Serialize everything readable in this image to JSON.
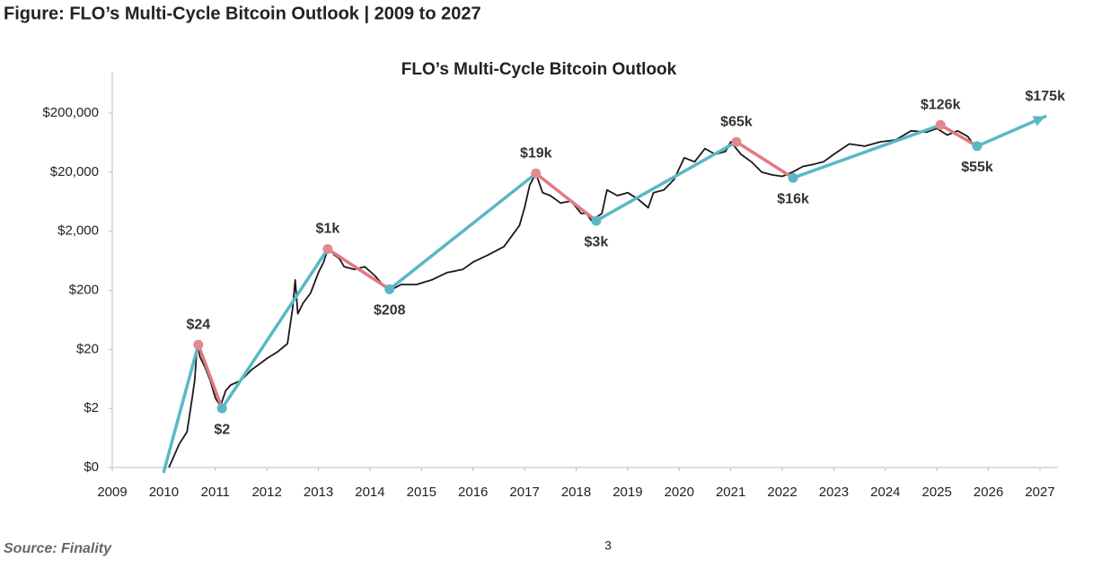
{
  "header": {
    "title": "Figure: FLO’s Multi-Cycle Bitcoin Outlook | 2009 to 2027"
  },
  "chart_data": {
    "type": "line",
    "title": "FLO’s Multi-Cycle Bitcoin Outlook",
    "log_scale": true,
    "xlim": [
      2009,
      2027
    ],
    "xticks": [
      2009,
      2010,
      2011,
      2012,
      2013,
      2014,
      2015,
      2016,
      2017,
      2018,
      2019,
      2020,
      2021,
      2022,
      2023,
      2024,
      2025,
      2026,
      2027
    ],
    "ylim": [
      0.2,
      1000000
    ],
    "yticks": [
      {
        "value": 0.2,
        "label": "$0"
      },
      {
        "value": 2,
        "label": "$2"
      },
      {
        "value": 20,
        "label": "$20"
      },
      {
        "value": 200,
        "label": "$200"
      },
      {
        "value": 2000,
        "label": "$2,000"
      },
      {
        "value": 20000,
        "label": "$20,000"
      },
      {
        "value": 200000,
        "label": "$200,000"
      }
    ],
    "series": [
      {
        "color": "#1a1a1a",
        "x": [
          2010.1,
          2010.3,
          2010.45,
          2010.55,
          2010.6,
          2010.65,
          2010.7,
          2010.8,
          2010.9,
          2011.0,
          2011.1,
          2011.2,
          2011.3,
          2011.5,
          2011.7,
          2011.9,
          2012.0,
          2012.2,
          2012.4,
          2012.5,
          2012.55,
          2012.6,
          2012.7,
          2012.85,
          2013.0,
          2013.1,
          2013.2,
          2013.3,
          2013.4,
          2013.5,
          2013.7,
          2013.9,
          2014.1,
          2014.3,
          2014.4,
          2014.6,
          2014.9,
          2015.2,
          2015.5,
          2015.8,
          2016.0,
          2016.3,
          2016.6,
          2016.9,
          2017.0,
          2017.1,
          2017.22,
          2017.35,
          2017.5,
          2017.7,
          2017.9,
          2018.1,
          2018.2,
          2018.3,
          2018.5,
          2018.6,
          2018.8,
          2019.0,
          2019.2,
          2019.4,
          2019.5,
          2019.7,
          2019.9,
          2020.1,
          2020.3,
          2020.5,
          2020.7,
          2020.9,
          2021.0,
          2021.2,
          2021.4,
          2021.6,
          2021.8,
          2022.0,
          2022.2,
          2022.4,
          2022.6,
          2022.8,
          2023.0,
          2023.3,
          2023.6,
          2023.9,
          2024.2,
          2024.5,
          2024.8,
          2025.0,
          2025.2,
          2025.4,
          2025.6,
          2025.7
        ],
        "values": [
          0.2,
          0.5,
          0.8,
          3,
          6,
          25,
          15,
          10,
          6,
          3,
          2.2,
          4,
          5,
          6,
          9,
          12,
          14,
          18,
          25,
          100,
          300,
          80,
          120,
          180,
          400,
          600,
          1100,
          800,
          700,
          500,
          450,
          500,
          350,
          220,
          200,
          250,
          250,
          300,
          400,
          450,
          600,
          800,
          1100,
          2500,
          5000,
          12000,
          19000,
          9000,
          8000,
          6000,
          6500,
          4000,
          4000,
          3000,
          4000,
          10000,
          8000,
          9000,
          7000,
          5000,
          9000,
          10000,
          15000,
          35000,
          30000,
          50000,
          40000,
          45000,
          65000,
          40000,
          30000,
          20000,
          18000,
          17000,
          20000,
          25000,
          27000,
          30000,
          40000,
          60000,
          55000,
          65000,
          70000,
          100000,
          95000,
          110000,
          85000,
          100000,
          80000,
          60000
        ]
      },
      {
        "up_color": "#5ab8c4",
        "down_color": "#e07a80",
        "peak_color": "#e08a90",
        "trough_color": "#5ab8c4",
        "x": [
          2010.0,
          2010.67,
          2011.13,
          2013.18,
          2014.38,
          2017.22,
          2018.39,
          2021.11,
          2022.21,
          2025.07,
          2025.78,
          2027.1
        ],
        "values": [
          0.17,
          24,
          2,
          1000,
          208,
          19000,
          3000,
          65000,
          16000,
          126000,
          55000,
          175000
        ],
        "value_labels": [
          null,
          "$24",
          "$2",
          "$1k",
          "$208",
          "$19k",
          "$3k",
          "$65k",
          "$16k",
          "$126k",
          "$55k",
          "$175k"
        ]
      }
    ]
  },
  "footer": {
    "source": "Source: Finality",
    "page_number": 3
  }
}
